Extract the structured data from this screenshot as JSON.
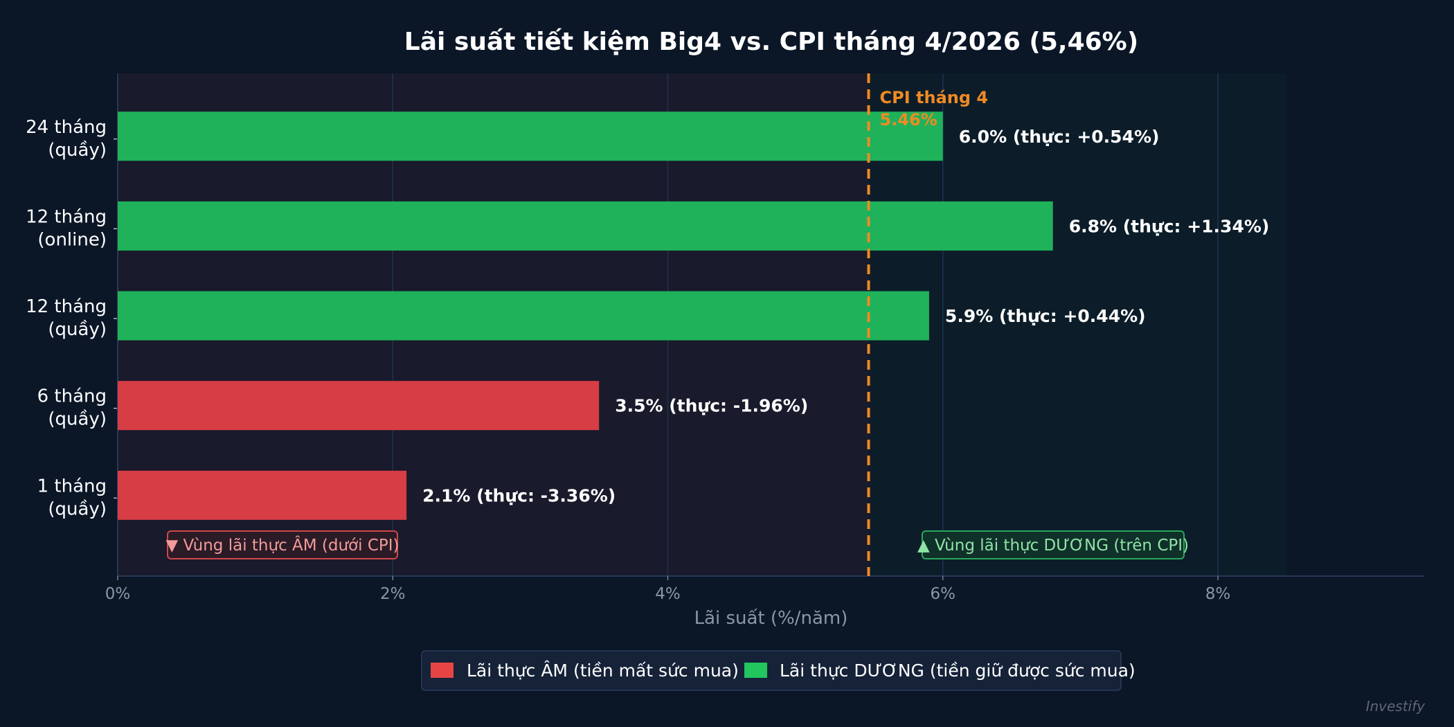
{
  "chart_data": {
    "type": "bar",
    "orientation": "horizontal",
    "title": "Lãi suất tiết kiệm Big4 vs. CPI tháng 4/2026 (5,46%)",
    "xlabel": "Lãi suất (%/năm)",
    "xlim": [
      0,
      9.5
    ],
    "xticks": [
      0,
      2,
      4,
      6,
      8
    ],
    "xtick_labels": [
      "0%",
      "2%",
      "4%",
      "6%",
      "8%"
    ],
    "grid": true,
    "categories": [
      [
        "24 tháng",
        "(quầy)"
      ],
      [
        "12 tháng",
        "(online)"
      ],
      [
        "12 tháng",
        "(quầy)"
      ],
      [
        "6 tháng",
        "(quầy)"
      ],
      [
        "1 tháng",
        "(quầy)"
      ]
    ],
    "values": [
      6.0,
      6.8,
      5.9,
      3.5,
      2.1
    ],
    "bar_labels": [
      "6.0%  (thực: +0.54%)",
      "6.8%  (thực: +1.34%)",
      "5.9%  (thực: +0.44%)",
      "3.5%  (thực: -1.96%)",
      "2.1%  (thực: -3.36%)"
    ],
    "bar_status": [
      "positive",
      "positive",
      "positive",
      "negative",
      "negative"
    ],
    "cpi": {
      "value": 5.46,
      "label_line1": "CPI tháng 4",
      "label_line2": "5.46%",
      "color": "#f08a24"
    },
    "zones": {
      "negative_label": "▼ Vùng lãi thực ÂM (dưới CPI)",
      "positive_label": "▲ Vùng lãi thực DƯƠNG (trên CPI)",
      "positive_zone_end": 8.5
    },
    "legend": {
      "placement": "bottom-center",
      "items": [
        {
          "label": "Lãi thực ÂM (tiền mất sức mua)",
          "color": "#e74545"
        },
        {
          "label": "Lãi thực DƯƠNG (tiền giữ được sức mua)",
          "color": "#22c55e"
        }
      ]
    },
    "colors": {
      "negative_bar": "#d63d45",
      "positive_bar": "#1fb25a",
      "background": "#0b1627"
    }
  },
  "watermark": "Investify"
}
